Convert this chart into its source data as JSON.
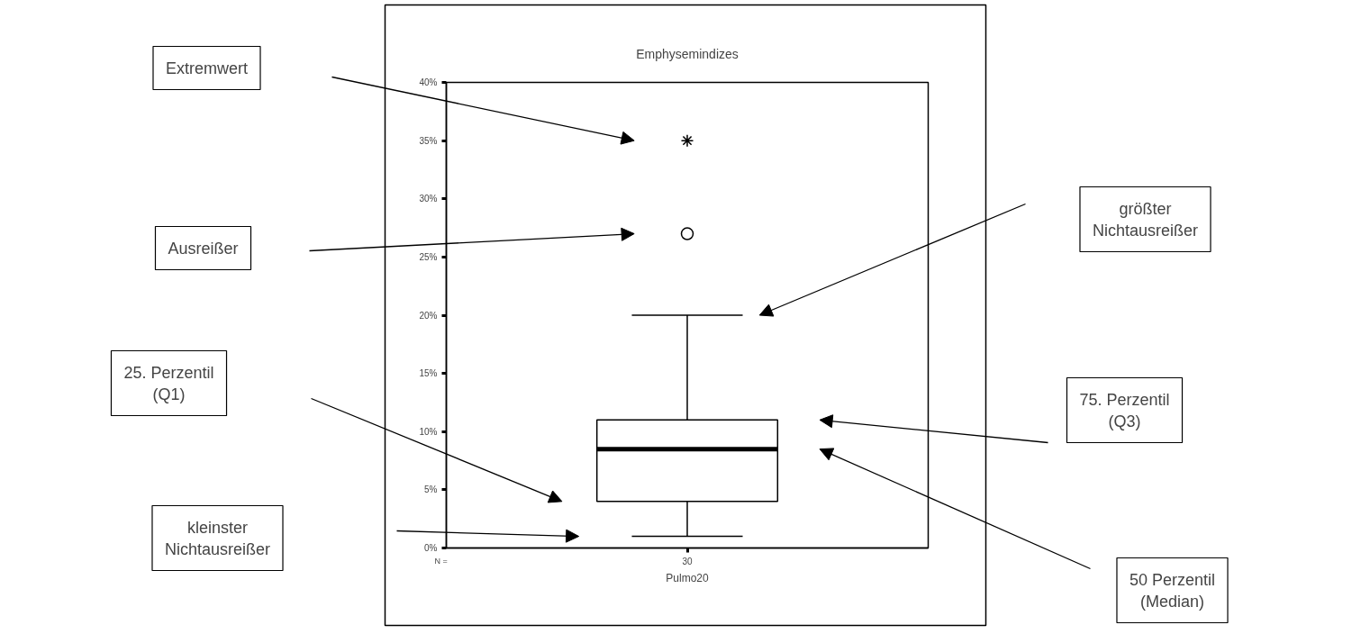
{
  "chart_data": {
    "type": "box",
    "title": "Emphysemindizes",
    "xlabel": "Pulmo20",
    "categories": [
      "30"
    ],
    "boxes": [
      {
        "low": 1,
        "q1": 4,
        "median": 8.5,
        "q3": 11,
        "high": 20,
        "outliers": [
          27,
          35
        ]
      }
    ],
    "ylim": [
      0,
      40
    ],
    "yticks": [
      {
        "value": 0,
        "label": "0%"
      },
      {
        "value": 5,
        "label": "5%"
      },
      {
        "value": 10,
        "label": "10%"
      },
      {
        "value": 15,
        "label": "15%"
      },
      {
        "value": 20,
        "label": "20%"
      },
      {
        "value": 25,
        "label": "25%"
      },
      {
        "value": 30,
        "label": "30%"
      },
      {
        "value": 35,
        "label": "35%"
      },
      {
        "value": 40,
        "label": "40%"
      }
    ],
    "grid": false,
    "annotations": [
      "Extremwert",
      "Ausreißer",
      "größter\nNichtausreißer",
      "25. Perzentil\n(Q1)",
      "kleinster\nNichtausreißer",
      "75. Perzentil\n(Q3)",
      "50 Perzentil\n(Median)",
      "N ="
    ]
  }
}
